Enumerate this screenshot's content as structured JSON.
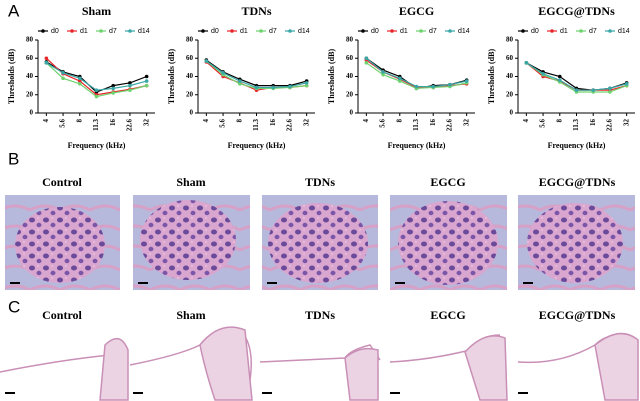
{
  "panel_labels": [
    "A",
    "B",
    "C"
  ],
  "panel_b_titles": [
    "Control",
    "Sham",
    "TDNs",
    "EGCG",
    "EGCG@TDNs"
  ],
  "panel_c_titles": [
    "Control",
    "Sham",
    "TDNs",
    "EGCG",
    "EGCG@TDNs"
  ],
  "chart_data": [
    {
      "type": "line",
      "title": "Sham",
      "xlabel": "Frequency (kHz)",
      "ylabel": "Thresholds (dB)",
      "categories": [
        "4",
        "5.6",
        "8",
        "11.3",
        "16",
        "22.6",
        "32"
      ],
      "ylim": [
        0,
        80
      ],
      "yticks": [
        0,
        20,
        40,
        60,
        80
      ],
      "series": [
        {
          "name": "d0",
          "color": "#000000",
          "values": [
            56,
            45,
            40,
            23,
            30,
            33,
            40
          ]
        },
        {
          "name": "d1",
          "color": "#e8262a",
          "values": [
            60,
            43,
            35,
            20,
            23,
            26,
            30
          ]
        },
        {
          "name": "d7",
          "color": "#6fd36f",
          "values": [
            55,
            38,
            32,
            18,
            22,
            25,
            30
          ]
        },
        {
          "name": "d14",
          "color": "#3aa7a7",
          "values": [
            55,
            44,
            38,
            25,
            27,
            30,
            35
          ]
        }
      ]
    },
    {
      "type": "line",
      "title": "TDNs",
      "xlabel": "Frequency (kHz)",
      "ylabel": "Thresholds (dB)",
      "categories": [
        "4",
        "5.6",
        "8",
        "11.3",
        "16",
        "22.6",
        "32"
      ],
      "ylim": [
        0,
        80
      ],
      "yticks": [
        0,
        20,
        40,
        60,
        80
      ],
      "series": [
        {
          "name": "d0",
          "color": "#000000",
          "values": [
            58,
            45,
            37,
            30,
            30,
            30,
            35
          ]
        },
        {
          "name": "d1",
          "color": "#e8262a",
          "values": [
            56,
            40,
            33,
            25,
            28,
            28,
            30
          ]
        },
        {
          "name": "d7",
          "color": "#6fd36f",
          "values": [
            57,
            42,
            32,
            27,
            27,
            28,
            30
          ]
        },
        {
          "name": "d14",
          "color": "#3aa7a7",
          "values": [
            57,
            44,
            35,
            28,
            28,
            29,
            33
          ]
        }
      ]
    },
    {
      "type": "line",
      "title": "EGCG",
      "xlabel": "Frequency (kHz)",
      "ylabel": "Thresholds (dB)",
      "categories": [
        "4",
        "5.6",
        "8",
        "11.3",
        "16",
        "22.6",
        "32"
      ],
      "ylim": [
        0,
        80
      ],
      "yticks": [
        0,
        20,
        40,
        60,
        80
      ],
      "series": [
        {
          "name": "d0",
          "color": "#000000",
          "values": [
            60,
            47,
            40,
            27,
            30,
            31,
            36
          ]
        },
        {
          "name": "d1",
          "color": "#e8262a",
          "values": [
            58,
            45,
            37,
            28,
            28,
            30,
            32
          ]
        },
        {
          "name": "d7",
          "color": "#6fd36f",
          "values": [
            55,
            42,
            35,
            27,
            28,
            29,
            33
          ]
        },
        {
          "name": "d14",
          "color": "#3aa7a7",
          "values": [
            60,
            45,
            38,
            29,
            29,
            31,
            35
          ]
        }
      ]
    },
    {
      "type": "line",
      "title": "EGCG@TDNs",
      "xlabel": "Frequency (kHz)",
      "ylabel": "Thresholds (dB)",
      "categories": [
        "4",
        "5.6",
        "8",
        "11.3",
        "16",
        "22.6",
        "32"
      ],
      "ylim": [
        0,
        80
      ],
      "yticks": [
        0,
        20,
        40,
        60,
        80
      ],
      "series": [
        {
          "name": "d0",
          "color": "#000000",
          "values": [
            55,
            45,
            40,
            27,
            25,
            27,
            33
          ]
        },
        {
          "name": "d1",
          "color": "#e8262a",
          "values": [
            55,
            40,
            35,
            25,
            25,
            25,
            30
          ]
        },
        {
          "name": "d7",
          "color": "#6fd36f",
          "values": [
            55,
            42,
            34,
            23,
            23,
            23,
            30
          ]
        },
        {
          "name": "d14",
          "color": "#3aa7a7",
          "values": [
            55,
            43,
            36,
            25,
            25,
            27,
            32
          ]
        }
      ]
    }
  ]
}
